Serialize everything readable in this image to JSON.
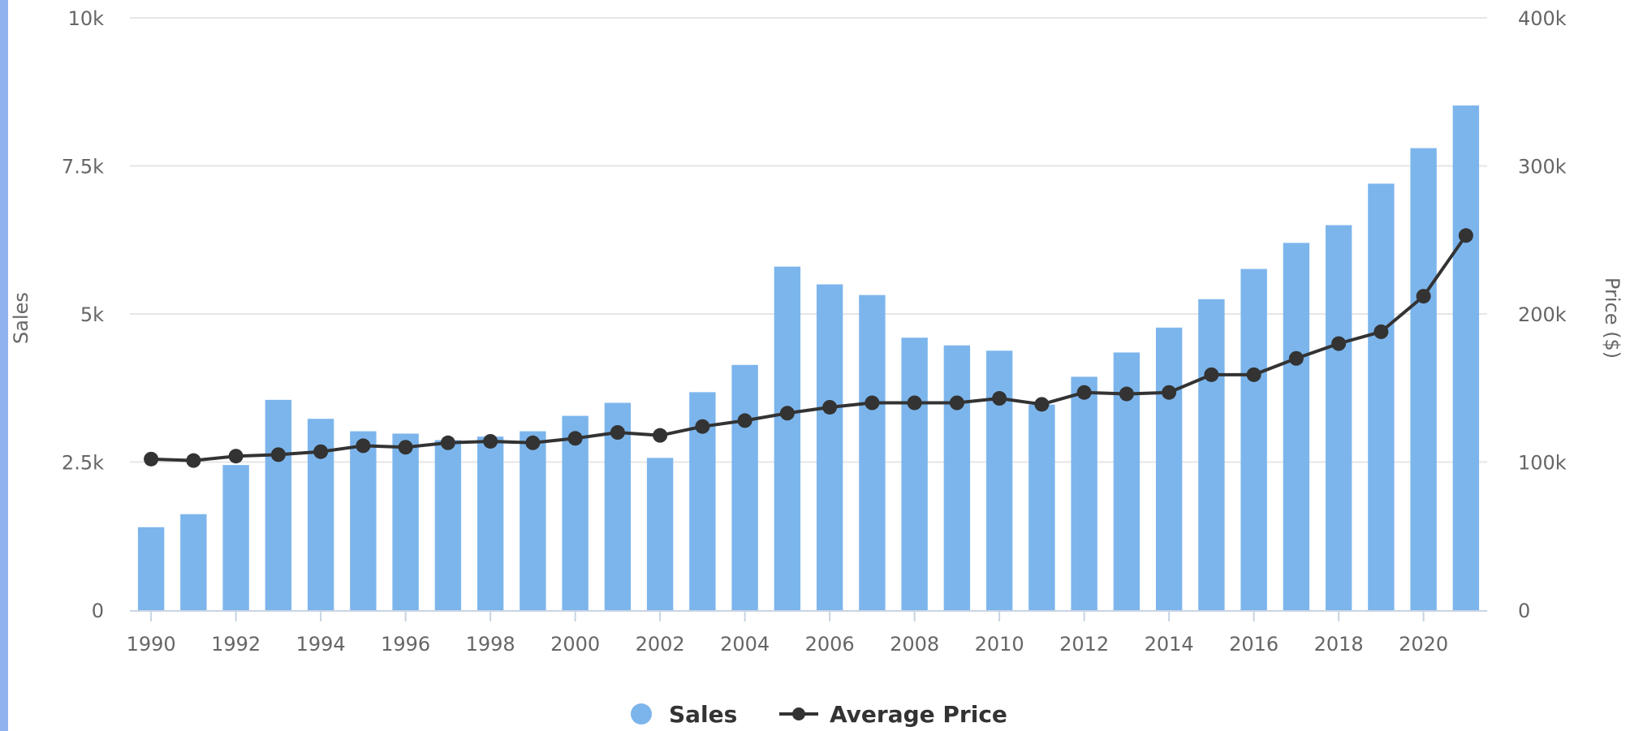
{
  "chart_data": {
    "type": "bar",
    "title": "",
    "categories": [
      "1990",
      "1991",
      "1992",
      "1993",
      "1994",
      "1995",
      "1996",
      "1997",
      "1998",
      "1999",
      "2000",
      "2001",
      "2002",
      "2003",
      "2004",
      "2005",
      "2006",
      "2007",
      "2008",
      "2009",
      "2010",
      "2011",
      "2012",
      "2013",
      "2014",
      "2015",
      "2016",
      "2017",
      "2018",
      "2019",
      "2020",
      "2021"
    ],
    "series": [
      {
        "name": "Sales",
        "type": "bar",
        "axis": "left",
        "color": "#7cb5ec",
        "values": [
          1400,
          1620,
          2450,
          3550,
          3230,
          3020,
          2980,
          2870,
          2930,
          3020,
          3280,
          3500,
          2570,
          3680,
          4140,
          5800,
          5500,
          5320,
          4600,
          4470,
          4380,
          3470,
          3940,
          4350,
          4770,
          5250,
          5760,
          6200,
          6500,
          7200,
          7800,
          8520
        ]
      },
      {
        "name": "Average Price",
        "type": "line",
        "axis": "right",
        "color": "#333333",
        "values": [
          102000,
          101000,
          104000,
          105000,
          107000,
          111000,
          110000,
          113000,
          114000,
          113000,
          116000,
          120000,
          118000,
          124000,
          128000,
          133000,
          137000,
          140000,
          140000,
          140000,
          143000,
          139000,
          147000,
          146000,
          147000,
          159000,
          159000,
          170000,
          180000,
          188000,
          212000,
          253000
        ]
      }
    ],
    "x_ticks": [
      "1990",
      "1992",
      "1994",
      "1996",
      "1998",
      "2000",
      "2002",
      "2004",
      "2006",
      "2008",
      "2010",
      "2012",
      "2014",
      "2016",
      "2018",
      "2020"
    ],
    "y_left": {
      "label": "Sales",
      "ylim": [
        0,
        10000
      ],
      "ticks": [
        {
          "value": 0,
          "label": "0"
        },
        {
          "value": 2500,
          "label": "2.5k"
        },
        {
          "value": 5000,
          "label": "5k"
        },
        {
          "value": 7500,
          "label": "7.5k"
        },
        {
          "value": 10000,
          "label": "10k"
        }
      ]
    },
    "y_right": {
      "label": "Price ($)",
      "ylim": [
        0,
        400000
      ],
      "ticks": [
        {
          "value": 0,
          "label": "0"
        },
        {
          "value": 100000,
          "label": "100k"
        },
        {
          "value": 200000,
          "label": "200k"
        },
        {
          "value": 300000,
          "label": "300k"
        },
        {
          "value": 400000,
          "label": "400k"
        }
      ]
    },
    "grid": true,
    "legend": {
      "placement": "bottom-center",
      "items": [
        {
          "label": "Sales",
          "symbol": "circle",
          "color": "#7cb5ec"
        },
        {
          "label": "Average Price",
          "symbol": "line-marker",
          "color": "#333333"
        }
      ]
    }
  }
}
